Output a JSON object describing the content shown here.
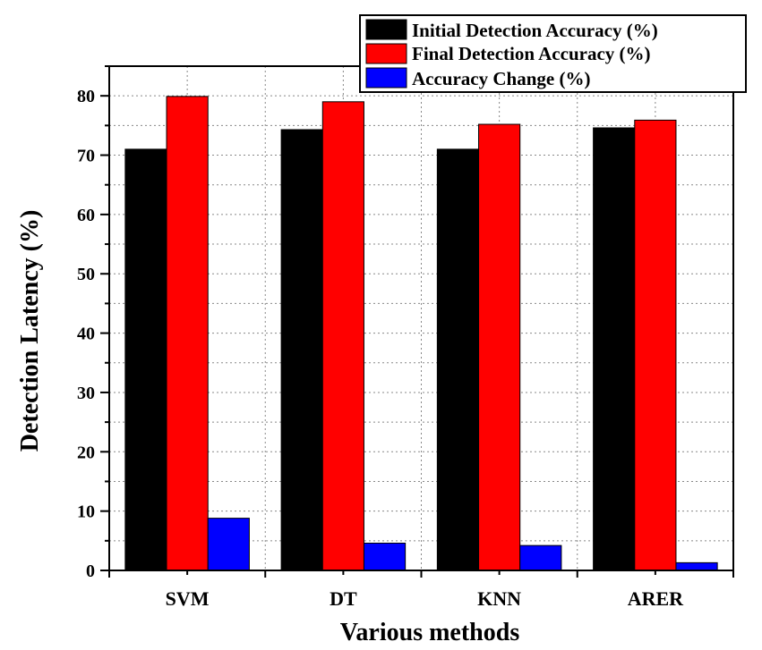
{
  "chart_data": {
    "type": "bar",
    "categories": [
      "SVM",
      "DT",
      "KNN",
      "ARER"
    ],
    "series": [
      {
        "name": "Initial Detection Accuracy (%)",
        "color": "#000000",
        "values": [
          71.0,
          74.3,
          71.0,
          74.6
        ]
      },
      {
        "name": "Final Detection Accuracy (%)",
        "color": "#ff0000",
        "values": [
          79.9,
          79.0,
          75.2,
          75.9
        ]
      },
      {
        "name": "Accuracy Change (%)",
        "color": "#0000ff",
        "values": [
          8.8,
          4.6,
          4.2,
          1.3
        ]
      }
    ],
    "xlabel": "Various methods",
    "ylabel": "Detection Latency (%)",
    "ylim": [
      0,
      85
    ],
    "yticks": [
      "0",
      "10",
      "20",
      "30",
      "40",
      "50",
      "60",
      "70",
      "80"
    ],
    "grid": true,
    "legend_position": "top-right"
  }
}
